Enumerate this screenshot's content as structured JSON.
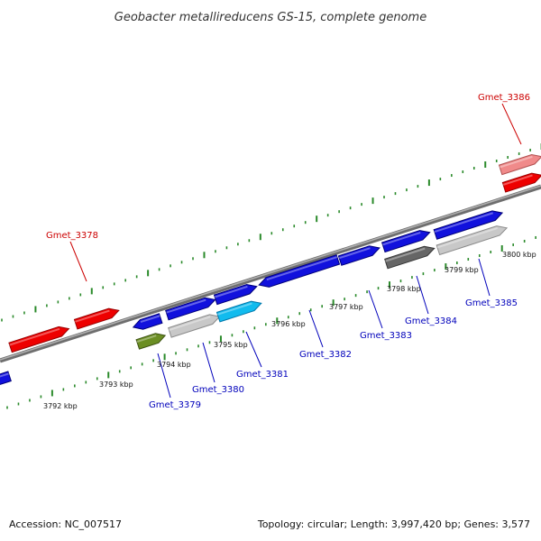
{
  "title": "Geobacter metallireducens GS-15, complete genome",
  "footer": {
    "accession": "Accession: NC_007517",
    "stats": "Topology: circular; Length: 3,997,420 bp; Genes: 3,577"
  },
  "colors": {
    "forward_label": "#cc0000",
    "reverse_label": "#0000bb",
    "tick": "#2a8a2a",
    "backbone": "#888888"
  },
  "scale_labels": [
    "3792 kbp",
    "3793 kbp",
    "3794 kbp",
    "3795 kbp",
    "3796 kbp",
    "3797 kbp",
    "3798 kbp",
    "3799 kbp",
    "3800 kbp"
  ],
  "gene_labels": {
    "g3378": "Gmet_3378",
    "g3386": "Gmet_3386",
    "g3379": "Gmet_3379",
    "g3380": "Gmet_3380",
    "g3381": "Gmet_3381",
    "g3382": "Gmet_3382",
    "g3383": "Gmet_3383",
    "g3384": "Gmet_3384",
    "g3385": "Gmet_3385"
  }
}
